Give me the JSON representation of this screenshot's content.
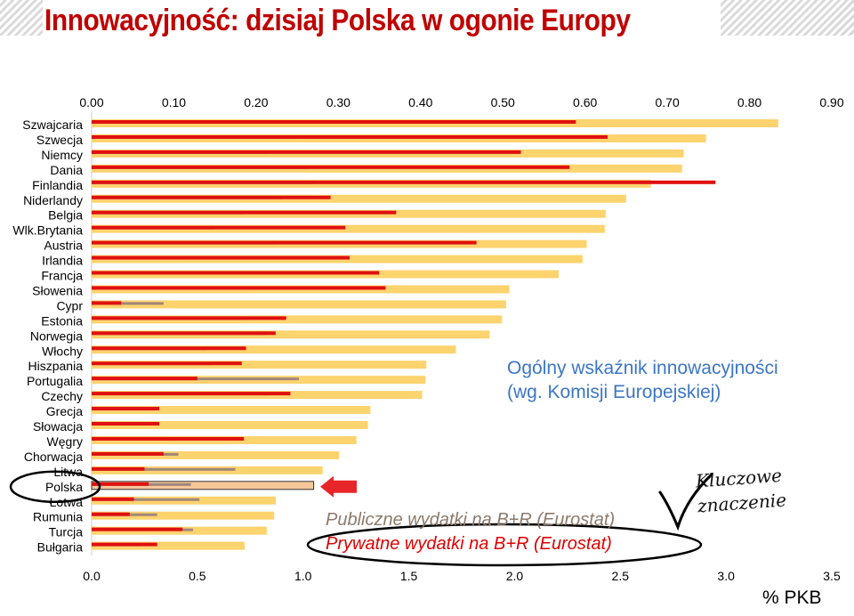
{
  "slide": {
    "title": "Innowacyjność: dzisiaj Polska w ogonie Europy",
    "annotation_main": "Ogólny wskaźnik innowacyjności\n(wg. Komisji Europejskiej)",
    "legend_public": "Publiczne wydatki na B+R (Eurostat)",
    "legend_private": "Prywatne wydatki na B+R (Eurostat)",
    "annotation_key": "Kluczowe\nznaczenie",
    "unit_label": "% PKB"
  },
  "chart_data": {
    "type": "bar",
    "orientation": "horizontal",
    "categories": [
      "Szwajcaria",
      "Szwecja",
      "Niemcy",
      "Dania",
      "Finlandia",
      "Niderlandy",
      "Belgia",
      "Wlk.Brytania",
      "Austria",
      "Irlandia",
      "Francja",
      "Słowenia",
      "Cypr",
      "Estonia",
      "Norwegia",
      "Włochy",
      "Hiszpania",
      "Portugalia",
      "Czechy",
      "Grecja",
      "Słowacja",
      "Węgry",
      "Chorwacja",
      "Litwa",
      "Polska",
      "Łotwa",
      "Rumunia",
      "Turcja",
      "Bułgaria"
    ],
    "highlight_category": "Polska",
    "top_axis": {
      "label": "",
      "ticks": [
        "0.00",
        "0.10",
        "0.20",
        "0.30",
        "0.40",
        "0.50",
        "0.60",
        "0.70",
        "0.80",
        "0.90"
      ],
      "range": [
        0,
        0.9
      ]
    },
    "bottom_axis": {
      "label": "% PKB",
      "ticks": [
        "0.0",
        "0.5",
        "1.0",
        "1.5",
        "2.0",
        "2.5",
        "3.0",
        "3.5"
      ],
      "range": [
        0,
        3.5
      ]
    },
    "series": [
      {
        "name": "Ogólny wskaźnik innowacyjności (wg. Komisji Europejskiej)",
        "axis": "top",
        "color": "#fdd36e",
        "values": [
          0.835,
          0.747,
          0.72,
          0.718,
          0.68,
          0.65,
          0.625,
          0.624,
          0.602,
          0.597,
          0.568,
          0.508,
          0.504,
          0.499,
          0.484,
          0.443,
          0.407,
          0.406,
          0.402,
          0.339,
          0.336,
          0.322,
          0.301,
          0.281,
          0.27,
          0.224,
          0.222,
          0.213,
          0.186
        ]
      },
      {
        "name": "Publiczne wydatki na B+R (Eurostat)",
        "axis": "bottom",
        "color": "#a0867a",
        "values": [
          0.84,
          0.98,
          0.84,
          1.02,
          1.05,
          0.9,
          0.72,
          0.58,
          0.86,
          0.43,
          0.8,
          0.74,
          0.34,
          0.73,
          0.82,
          0.54,
          0.57,
          0.98,
          0.84,
          0.29,
          0.32,
          0.38,
          0.41,
          0.68,
          0.47,
          0.51,
          0.31,
          0.48,
          0.23
        ]
      },
      {
        "name": "Prywatne wydatki na B+R (Eurostat)",
        "axis": "bottom",
        "color": "#e01010",
        "values": [
          2.29,
          2.44,
          2.03,
          2.26,
          2.95,
          1.13,
          1.44,
          1.2,
          1.82,
          1.22,
          1.36,
          1.39,
          0.14,
          0.92,
          0.87,
          0.73,
          0.71,
          0.5,
          0.94,
          0.32,
          0.32,
          0.72,
          0.34,
          0.25,
          0.27,
          0.2,
          0.18,
          0.43,
          0.31
        ]
      }
    ]
  }
}
